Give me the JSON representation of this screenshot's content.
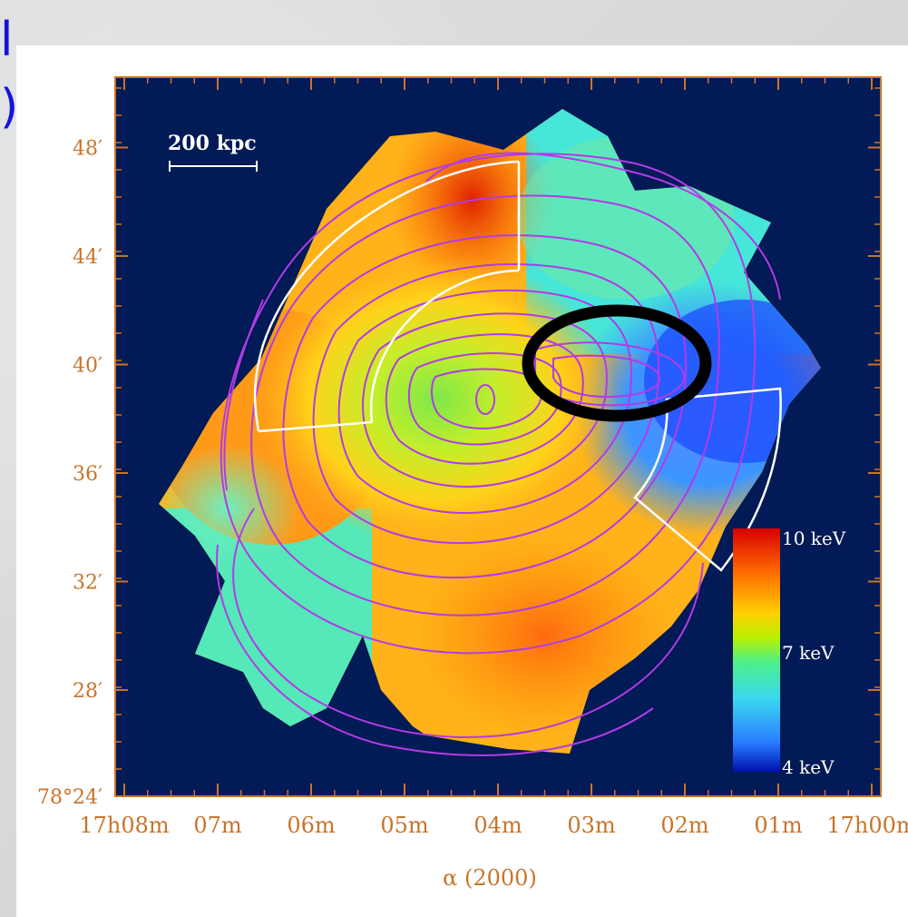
{
  "slide": {
    "fragments": [
      "l.",
      ")"
    ]
  },
  "chart_data": {
    "type": "heatmap",
    "title": "",
    "xlabel": "α (2000)",
    "ylabel": "",
    "x_ticks": [
      "17h08m",
      "07m",
      "06m",
      "05m",
      "04m",
      "03m",
      "02m",
      "01m",
      "17h00m"
    ],
    "y_ticks": [
      "78°24′",
      "28′",
      "32′",
      "36′",
      "40′",
      "44′",
      "48′"
    ],
    "scale_bar_label": "200 kpc",
    "colorbar": {
      "labels": [
        "10 keV",
        "7 keV",
        "4 keV"
      ],
      "range_keV": [
        4,
        10
      ],
      "stops": [
        "#d60000",
        "#ff6a00",
        "#ffd000",
        "#b8f000",
        "#4cf08a",
        "#3ad8f0",
        "#2a7cff",
        "#0010b0"
      ]
    },
    "colors": {
      "background": "#021a55",
      "axis": "#c8742a",
      "contours": "#b23be6",
      "sector_outline": "#ffffff",
      "marker": "#000000"
    }
  }
}
